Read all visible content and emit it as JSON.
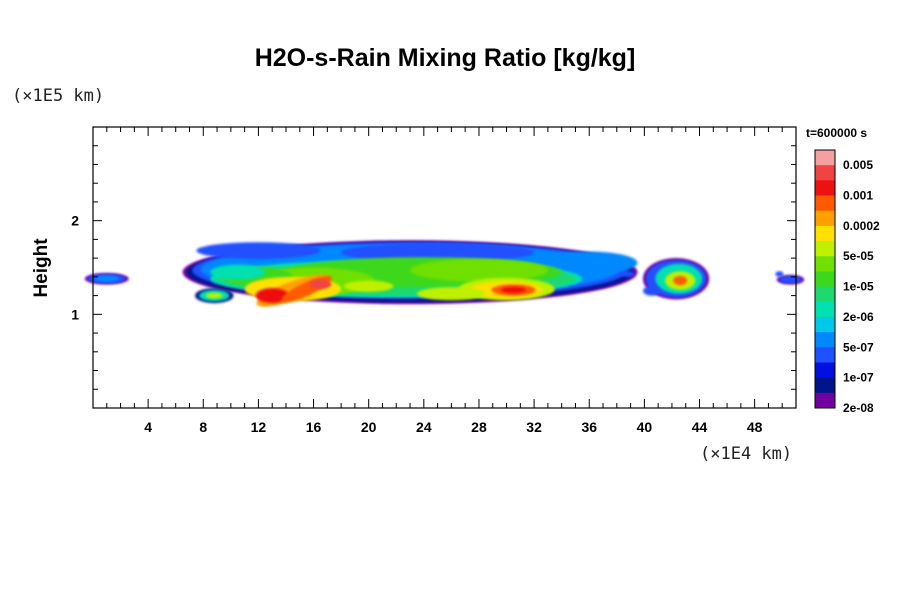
{
  "chart_data": {
    "type": "heatmap",
    "title": "H2O-s-Rain Mixing Ratio [kg/kg]",
    "ylabel": "Height",
    "xlabel": "",
    "x_unit": "(×1E4 km)",
    "y_unit": "(×1E5 km)",
    "time_label": "t=600000 s",
    "xlim": [
      0,
      51
    ],
    "ylim": [
      0,
      3
    ],
    "x_ticks": [
      4,
      8,
      12,
      16,
      20,
      24,
      28,
      32,
      36,
      40,
      44,
      48
    ],
    "y_ticks": [
      1,
      2
    ],
    "colorbar": {
      "labels": [
        "0.005",
        "0.001",
        "0.0002",
        "5e-05",
        "1e-05",
        "2e-06",
        "5e-07",
        "1e-07",
        "2e-08"
      ],
      "colors": [
        "#f4a0a0",
        "#ee4444",
        "#ee1111",
        "#ff5a00",
        "#ffa000",
        "#ffe000",
        "#bff000",
        "#70e000",
        "#3cd81c",
        "#1ed870",
        "#00e0b0",
        "#00c8e8",
        "#0088ff",
        "#2050ff",
        "#0010e0",
        "#00148c",
        "#7000a0"
      ]
    },
    "regions": [
      {
        "x": [
          7.5,
          39
        ],
        "y": [
          1.1,
          1.78
        ],
        "level": "1e-07 to 0.005"
      },
      {
        "x": [
          39.5,
          44.5
        ],
        "y": [
          1.15,
          1.6
        ],
        "level": "1e-07 to 0.001"
      },
      {
        "x": [
          0,
          2.2
        ],
        "y": [
          1.3,
          1.45
        ],
        "level": "2e-08 to 1e-07"
      },
      {
        "x": [
          49.5,
          51
        ],
        "y": [
          1.3,
          1.42
        ],
        "level": "2e-08 to 1e-07"
      }
    ]
  }
}
